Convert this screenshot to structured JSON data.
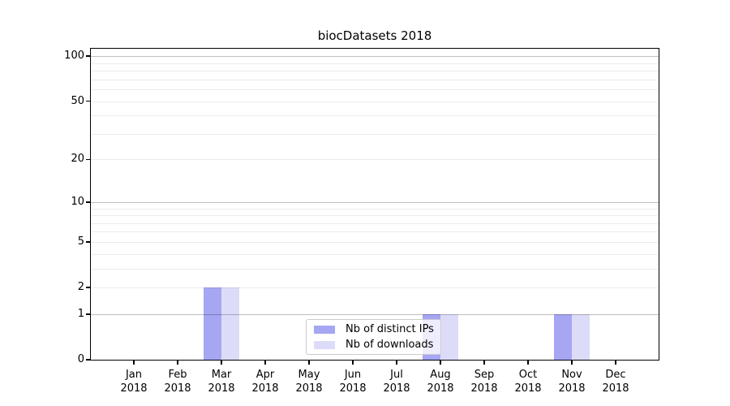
{
  "chart_data": {
    "type": "bar",
    "title": "biocDatasets 2018",
    "categories": [
      "Jan 2018",
      "Feb 2018",
      "Mar 2018",
      "Apr 2018",
      "May 2018",
      "Jun 2018",
      "Jul 2018",
      "Aug 2018",
      "Sep 2018",
      "Oct 2018",
      "Nov 2018",
      "Dec 2018"
    ],
    "x_tick_labels": [
      {
        "month": "Jan",
        "year": "2018"
      },
      {
        "month": "Feb",
        "year": "2018"
      },
      {
        "month": "Mar",
        "year": "2018"
      },
      {
        "month": "Apr",
        "year": "2018"
      },
      {
        "month": "May",
        "year": "2018"
      },
      {
        "month": "Jun",
        "year": "2018"
      },
      {
        "month": "Jul",
        "year": "2018"
      },
      {
        "month": "Aug",
        "year": "2018"
      },
      {
        "month": "Sep",
        "year": "2018"
      },
      {
        "month": "Oct",
        "year": "2018"
      },
      {
        "month": "Nov",
        "year": "2018"
      },
      {
        "month": "Dec",
        "year": "2018"
      }
    ],
    "series": [
      {
        "name": "Nb of distinct IPs",
        "color": "#a6a6f2",
        "values": [
          0,
          0,
          2,
          0,
          0,
          0,
          0,
          1,
          0,
          0,
          1,
          0
        ]
      },
      {
        "name": "Nb of downloads",
        "color": "#dcdcf9",
        "values": [
          0,
          0,
          2,
          0,
          0,
          0,
          0,
          1,
          0,
          0,
          1,
          0
        ]
      }
    ],
    "y_axis": {
      "scale": "symlog-log1p",
      "tick_values": [
        0,
        1,
        2,
        5,
        10,
        20,
        50,
        100
      ],
      "tick_labels": [
        "0",
        "1",
        "2",
        "5",
        "10",
        "20",
        "50",
        "100"
      ],
      "major_gridlines": [
        1,
        10,
        100
      ],
      "minor_gridlines": [
        2,
        3,
        4,
        5,
        6,
        7,
        8,
        9,
        20,
        30,
        40,
        50,
        60,
        70,
        80,
        90
      ],
      "range_max": 112
    },
    "legend": {
      "location": "inside-bottom-center"
    },
    "grid": true,
    "colors": {
      "bar_distinct_ips": "#a6a6f2",
      "bar_downloads": "#dcdcf9",
      "axis": "#000000",
      "grid_major": "#c0c0c0",
      "grid_minor": "#ebebeb",
      "legend_border": "#cccccc",
      "background": "#ffffff"
    }
  }
}
